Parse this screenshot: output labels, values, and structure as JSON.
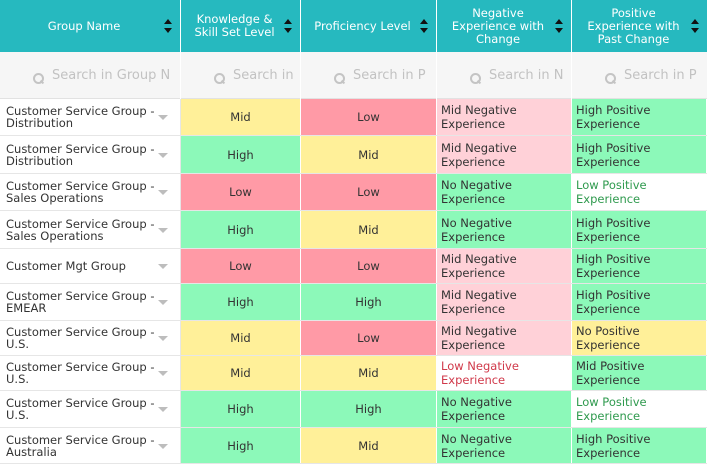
{
  "columns": [
    {
      "label": "Group Name",
      "placeholder": "Search in Group N"
    },
    {
      "label": "Knowledge & Skill Set Level",
      "placeholder": "Search in"
    },
    {
      "label": "Proficiency Level",
      "placeholder": "Search in P"
    },
    {
      "label": "Negative Experience with Change",
      "placeholder": "Search in N"
    },
    {
      "label": "Positive Experience with Past Change",
      "placeholder": "Search in P"
    }
  ],
  "colors": {
    "header": "#26b9bf",
    "yellow": "#fff099",
    "green": "#8cf9b9",
    "red": "#ff9aa6",
    "pink": "#ffd1d8",
    "text_red": "#d0394a",
    "text_green": "#2f9a4e"
  },
  "icons": {
    "sort": "sort-updown-icon",
    "search": "search-icon",
    "dropdown": "chevron-down-icon"
  },
  "rows": [
    {
      "group": "Customer Service Group - Distribution",
      "knowledge": "Mid",
      "proficiency": "Low",
      "negative": "Mid Negative Experience",
      "positive": "High Positive Experience"
    },
    {
      "group": "Customer Service Group - Distribution",
      "knowledge": "High",
      "proficiency": "Mid",
      "negative": "Mid Negative Experience",
      "positive": "High Positive Experience"
    },
    {
      "group": "Customer Service Group - Sales Operations",
      "knowledge": "Low",
      "proficiency": "Low",
      "negative": "No Negative Experience",
      "positive": "Low Positive Experience"
    },
    {
      "group": "Customer Service Group - Sales Operations",
      "knowledge": "High",
      "proficiency": "Mid",
      "negative": "No Negative Experience",
      "positive": "High Positive Experience"
    },
    {
      "group": "Customer Mgt Group",
      "knowledge": "Low",
      "proficiency": "Low",
      "negative": "Mid Negative Experience",
      "positive": "High Positive Experience"
    },
    {
      "group": "Customer Service Group - EMEAR",
      "knowledge": "High",
      "proficiency": "High",
      "negative": "Mid Negative Experience",
      "positive": "High Positive Experience"
    },
    {
      "group": "Customer Service Group - U.S.",
      "knowledge": "Mid",
      "proficiency": "Low",
      "negative": "Mid Negative Experience",
      "positive": "No Positive Experience"
    },
    {
      "group": "Customer Service Group - U.S.",
      "knowledge": "Mid",
      "proficiency": "Mid",
      "negative": "Low Negative Experience",
      "positive": "Mid Positive Experience"
    },
    {
      "group": "Customer Service Group - U.S.",
      "knowledge": "High",
      "proficiency": "High",
      "negative": "No Negative Experience",
      "positive": "Low Positive Experience"
    },
    {
      "group": "Customer Service Group - Australia",
      "knowledge": "High",
      "proficiency": "Mid",
      "negative": "No Negative Experience",
      "positive": "High Positive Experience"
    }
  ]
}
